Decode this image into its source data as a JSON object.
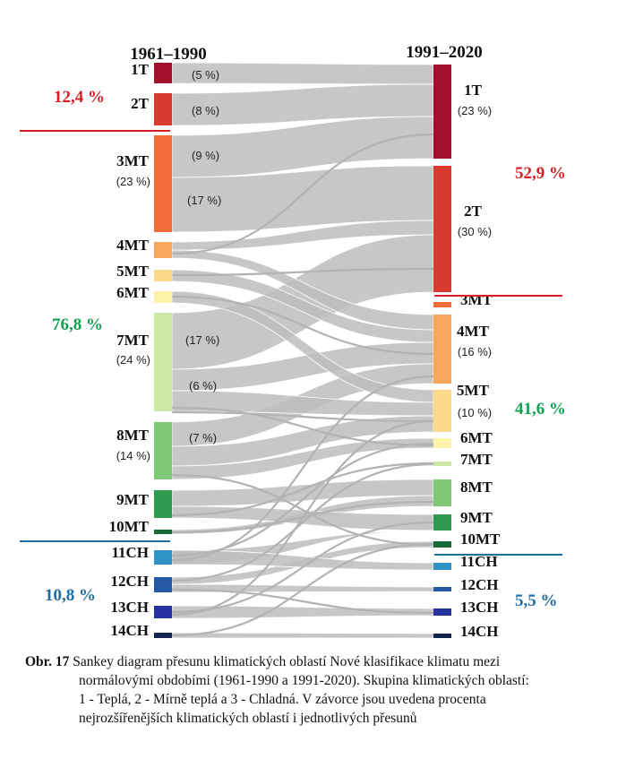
{
  "column_titles": {
    "left": "1961–1990",
    "right": "1991–2020"
  },
  "colors": {
    "1T": "#a3102b",
    "2T": "#d93a2f",
    "3MT": "#f16e3a",
    "4MT": "#f8a65c",
    "5MT": "#fdd98b",
    "6MT": "#fdf3a8",
    "7MT": "#cde8a4",
    "8MT": "#7ec877",
    "9MT": "#2e9b50",
    "10MT": "#1a6b3a",
    "11CH": "#2f93c7",
    "12CH": "#2659a5",
    "13CH": "#2732a0",
    "14CH": "#14244e",
    "flow": "#bdbdbd",
    "warm": "#d81f26",
    "mild": "#12a150",
    "cold": "#1d6fa3"
  },
  "left_nodes": [
    {
      "name": "1T",
      "share": ""
    },
    {
      "name": "2T",
      "share": ""
    },
    {
      "name": "3MT",
      "share": "(23 %)"
    },
    {
      "name": "4MT",
      "share": ""
    },
    {
      "name": "5MT",
      "share": ""
    },
    {
      "name": "6MT",
      "share": ""
    },
    {
      "name": "7MT",
      "share": "(24 %)"
    },
    {
      "name": "8MT",
      "share": "(14 %)"
    },
    {
      "name": "9MT",
      "share": ""
    },
    {
      "name": "10MT",
      "share": ""
    },
    {
      "name": "11CH",
      "share": ""
    },
    {
      "name": "12CH",
      "share": ""
    },
    {
      "name": "13CH",
      "share": ""
    },
    {
      "name": "14CH",
      "share": ""
    }
  ],
  "right_nodes": [
    {
      "name": "1T",
      "share": "(23 %)"
    },
    {
      "name": "2T",
      "share": "(30 %)"
    },
    {
      "name": "3MT",
      "share": ""
    },
    {
      "name": "4MT",
      "share": "(16 %)"
    },
    {
      "name": "5MT",
      "share": "(10 %)"
    },
    {
      "name": "6MT",
      "share": ""
    },
    {
      "name": "7MT",
      "share": ""
    },
    {
      "name": "8MT",
      "share": ""
    },
    {
      "name": "9MT",
      "share": ""
    },
    {
      "name": "10MT",
      "share": ""
    },
    {
      "name": "11CH",
      "share": ""
    },
    {
      "name": "12CH",
      "share": ""
    },
    {
      "name": "13CH",
      "share": ""
    },
    {
      "name": "14CH",
      "share": ""
    }
  ],
  "flow_labels": [
    "(5 %)",
    "(8 %)",
    "(9 %)",
    "(17 %)",
    "(17 %)",
    "(6 %)",
    "(7 %)"
  ],
  "group_percentages": {
    "left_warm": "12,4 %",
    "left_mild": "76,8 %",
    "left_cold": "10,8 %",
    "right_warm": "52,9 %",
    "right_mild": "41,6 %",
    "right_cold": "5,5 %"
  },
  "caption": {
    "lead": "Obr. 17",
    "line1": " Sankey diagram přesunu klimatických oblastí Nové klasifikace klimatu mezi",
    "line2": "normálovými obdobími (1961-1990 a 1991-2020). Skupina klimatických oblastí:",
    "line3": "1 - Teplá, 2 - Mírně teplá a 3 - Chladná. V závorce jsou uvedena procenta",
    "line4": "nejrozšířenějších klimatických oblastí i jednotlivých přesunů"
  }
}
